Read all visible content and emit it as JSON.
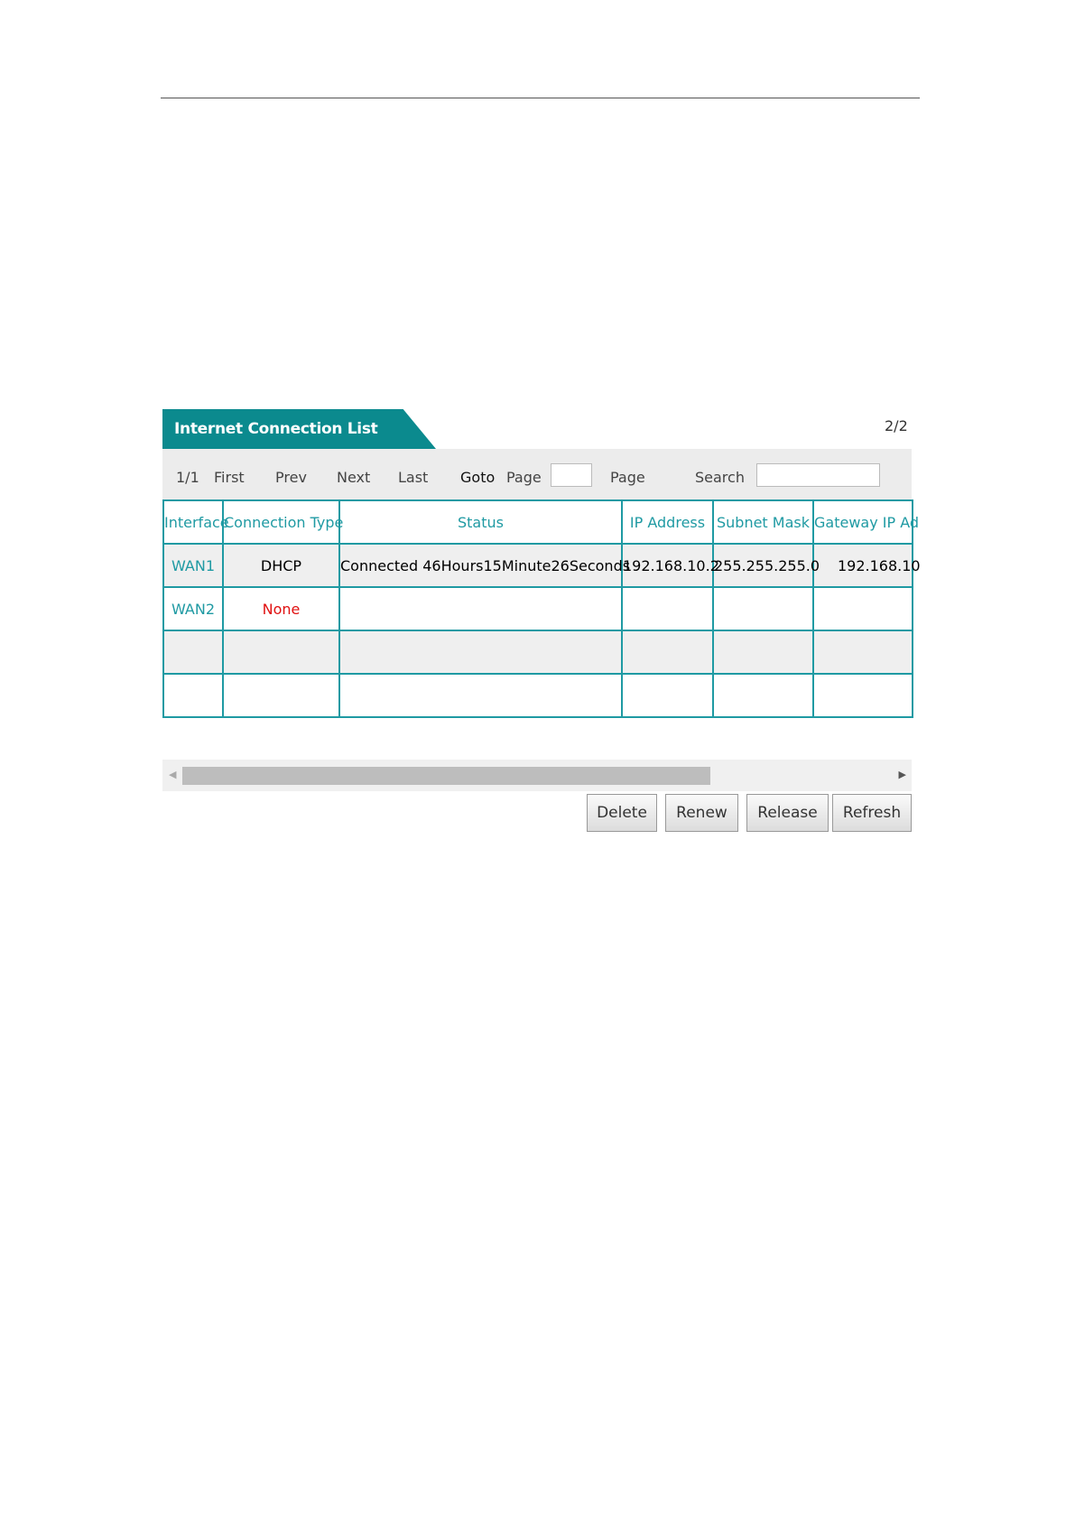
{
  "panel": {
    "title": "Internet Connection List",
    "page_count": "2/2"
  },
  "toolbar": {
    "page_info": "1/1",
    "first": "First",
    "prev": "Prev",
    "next": "Next",
    "last": "Last",
    "goto": "Goto",
    "page_label": "Page",
    "goto_value": "",
    "page_label2": "Page",
    "search_label": "Search",
    "search_value": ""
  },
  "table": {
    "headers": [
      "Interface",
      "Connection Type",
      "Status",
      "IP Address",
      "Subnet Mask",
      "Gateway IP Ad"
    ],
    "rows": [
      [
        "WAN1",
        "DHCP",
        "Connected 46Hours15Minute26Seconds",
        "192.168.10.2",
        "255.255.255.0",
        "192.168.10"
      ],
      [
        "WAN2",
        "None",
        "",
        "",
        "",
        ""
      ]
    ]
  },
  "buttons": {
    "delete": "Delete",
    "renew": "Renew",
    "release": "Release",
    "refresh": "Refresh"
  },
  "colors": {
    "accent": "#0b8a8e",
    "none_status": "#e01010"
  }
}
